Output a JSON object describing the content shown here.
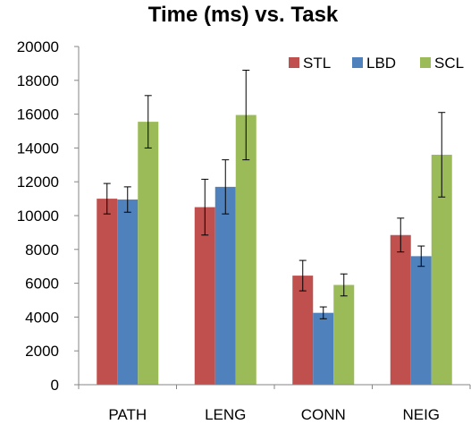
{
  "chart_data": {
    "type": "bar",
    "title": "Time (ms) vs. Task",
    "xlabel": "",
    "ylabel": "",
    "categories": [
      "PATH",
      "LENG",
      "CONN",
      "NEIG"
    ],
    "ylim": [
      0,
      20000
    ],
    "yticks": [
      0,
      2000,
      4000,
      6000,
      8000,
      10000,
      12000,
      14000,
      16000,
      18000,
      20000
    ],
    "grid": false,
    "legend_position": "top-right",
    "series": [
      {
        "name": "STL",
        "color": "#c0504d",
        "values": [
          11000,
          10500,
          6450,
          8850
        ],
        "error": [
          900,
          1650,
          900,
          1000
        ]
      },
      {
        "name": "LBD",
        "color": "#4f81bd",
        "values": [
          10950,
          11700,
          4250,
          7600
        ],
        "error": [
          750,
          1600,
          350,
          600
        ]
      },
      {
        "name": "SCL",
        "color": "#9bbb59",
        "values": [
          15550,
          15950,
          5900,
          13600
        ],
        "error": [
          1550,
          2650,
          650,
          2500
        ]
      }
    ]
  }
}
